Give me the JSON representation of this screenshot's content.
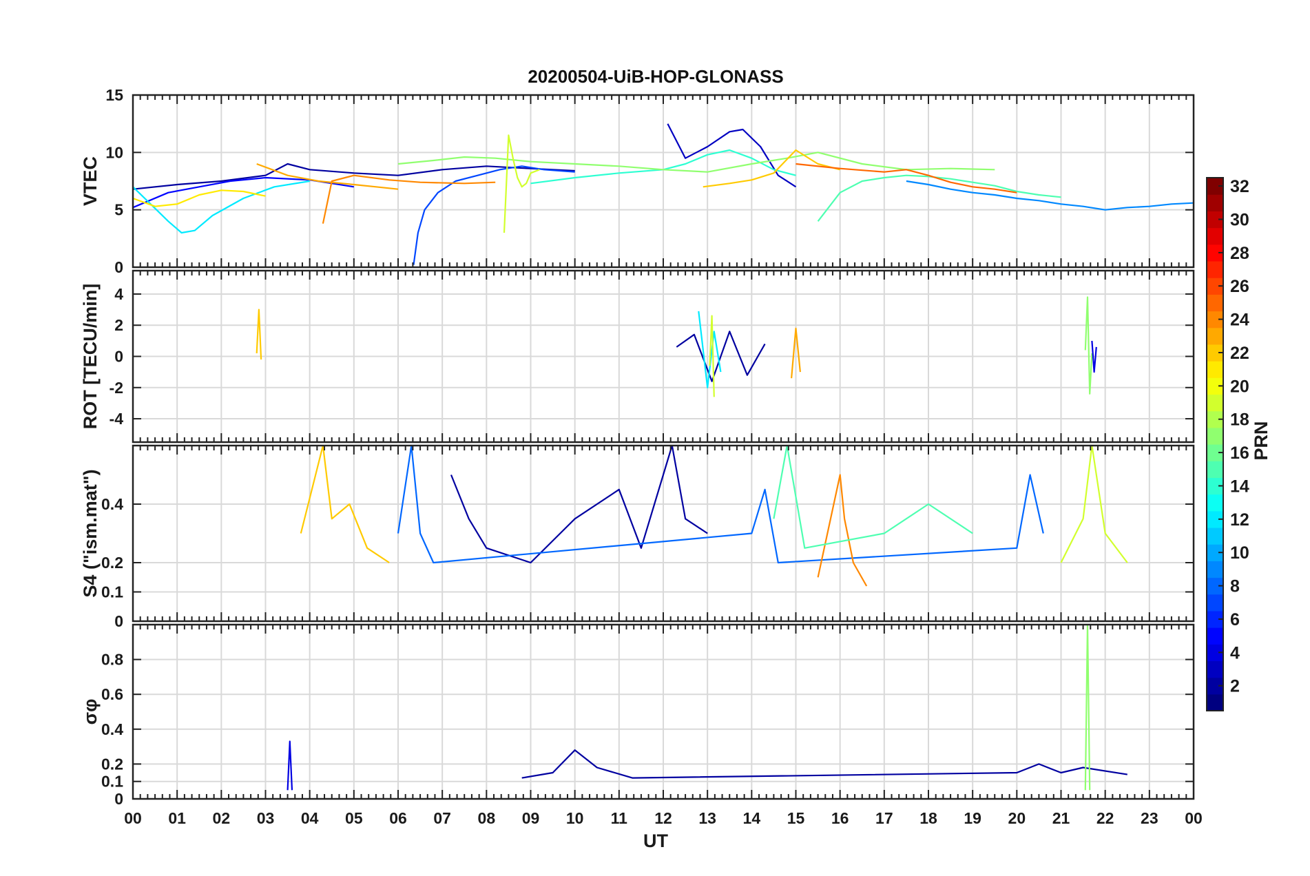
{
  "chart_data": {
    "type": "line",
    "title": "20200504-UiB-HOP-GLONASS",
    "xlabel": "UT",
    "x_ticks": [
      "00",
      "01",
      "02",
      "03",
      "04",
      "05",
      "06",
      "07",
      "08",
      "09",
      "10",
      "11",
      "12",
      "13",
      "14",
      "15",
      "16",
      "17",
      "18",
      "19",
      "20",
      "21",
      "22",
      "23",
      "00"
    ],
    "xlim_hours": [
      0,
      24
    ],
    "grid": true,
    "color_by": "PRN",
    "colorbar": {
      "label": "PRN",
      "range": [
        1,
        32
      ],
      "colormap": "jet",
      "ticks": [
        "2",
        "4",
        "6",
        "8",
        "10",
        "12",
        "14",
        "16",
        "18",
        "20",
        "22",
        "24",
        "26",
        "28",
        "30",
        "32"
      ]
    },
    "panels": [
      {
        "ylabel": "VTEC",
        "ylim": [
          0,
          15
        ],
        "yticks": [
          "0",
          "5",
          "10",
          "15"
        ],
        "series": [
          {
            "prn": 2,
            "x": [
              0,
              1,
              2,
              3,
              3.5,
              4,
              5,
              6,
              7,
              8,
              9,
              10
            ],
            "y": [
              6.8,
              7.2,
              7.5,
              8.0,
              9.0,
              8.5,
              8.2,
              8.0,
              8.5,
              8.8,
              8.6,
              8.4
            ]
          },
          {
            "prn": 3,
            "x": [
              12.1,
              12.5,
              13,
              13.5,
              13.8,
              14.2,
              14.6,
              15
            ],
            "y": [
              12.5,
              9.5,
              10.5,
              11.8,
              12.0,
              10.5,
              8.0,
              7.0
            ]
          },
          {
            "prn": 5,
            "x": [
              0,
              0.8,
              1.5,
              2.2,
              3,
              4,
              5
            ],
            "y": [
              5.2,
              6.5,
              7.0,
              7.5,
              7.8,
              7.6,
              7.0
            ]
          },
          {
            "prn": 7,
            "x": [
              6.35,
              6.45,
              6.6,
              6.9,
              7.3,
              7.8,
              8.3,
              8.8,
              9.3,
              10
            ],
            "y": [
              0.2,
              3.0,
              5.0,
              6.5,
              7.5,
              8.0,
              8.5,
              8.8,
              8.5,
              8.3
            ]
          },
          {
            "prn": 9,
            "x": [
              17.5,
              18,
              18.5,
              19,
              19.5,
              20,
              20.5,
              21,
              21.5,
              22,
              22.5,
              23,
              23.5,
              24
            ],
            "y": [
              7.5,
              7.2,
              6.8,
              6.5,
              6.3,
              6.0,
              5.8,
              5.5,
              5.3,
              5.0,
              5.2,
              5.3,
              5.5,
              5.6
            ]
          },
          {
            "prn": 12,
            "x": [
              0,
              0.4,
              0.8,
              1.1,
              1.4,
              1.8,
              2.5,
              3.2,
              4.0
            ],
            "y": [
              7.0,
              5.5,
              4.0,
              3.0,
              3.2,
              4.5,
              6.0,
              7.0,
              7.5
            ]
          },
          {
            "prn": 14,
            "x": [
              9,
              10,
              11,
              12,
              12.5,
              13,
              13.5,
              14,
              14.5,
              15
            ],
            "y": [
              7.3,
              7.8,
              8.2,
              8.5,
              9.0,
              9.8,
              10.2,
              9.5,
              8.5,
              8.0
            ]
          },
          {
            "prn": 15,
            "x": [
              15.5,
              16,
              16.5,
              17,
              17.5,
              18,
              18.5,
              19,
              19.5,
              20,
              20.5,
              21
            ],
            "y": [
              4.0,
              6.5,
              7.5,
              7.8,
              8.0,
              7.9,
              7.7,
              7.4,
              7.1,
              6.6,
              6.3,
              6.1
            ]
          },
          {
            "prn": 17,
            "x": [
              6,
              6.8,
              7.5,
              8.2,
              9,
              10,
              11,
              12,
              13,
              14,
              14.8,
              15.5,
              16.5,
              17.5,
              18.5,
              19.5
            ],
            "y": [
              9.0,
              9.3,
              9.6,
              9.5,
              9.2,
              9.0,
              8.8,
              8.5,
              8.3,
              9.0,
              9.5,
              10.0,
              9.0,
              8.5,
              8.6,
              8.5
            ]
          },
          {
            "prn": 19,
            "x": [
              8.4,
              8.5,
              8.6,
              8.7,
              8.8,
              8.9,
              9.0,
              9.2
            ],
            "y": [
              3.0,
              11.5,
              9.5,
              7.8,
              7.0,
              7.3,
              8.2,
              8.5
            ]
          },
          {
            "prn": 21,
            "x": [
              0,
              0.5,
              1,
              1.5,
              2,
              2.5,
              3
            ],
            "y": [
              6.0,
              5.3,
              5.5,
              6.3,
              6.7,
              6.6,
              6.2
            ]
          },
          {
            "prn": 23,
            "x": [
              2.8,
              3.5,
              4.2,
              5,
              5.5,
              6.0
            ],
            "y": [
              9.0,
              8.0,
              7.5,
              7.2,
              7.0,
              6.8
            ]
          },
          {
            "prn": 24,
            "x": [
              4.3,
              4.5,
              5,
              5.8,
              6.5,
              7.5,
              8.2
            ],
            "y": [
              3.8,
              7.5,
              8.0,
              7.6,
              7.4,
              7.3,
              7.4
            ]
          },
          {
            "prn": 22,
            "x": [
              12.9,
              13.5,
              14,
              14.5,
              15.0,
              15.5,
              16
            ],
            "y": [
              7.0,
              7.3,
              7.6,
              8.2,
              10.2,
              9.0,
              8.5
            ]
          },
          {
            "prn": 25,
            "x": [
              15,
              16,
              17,
              17.5,
              18,
              18.5,
              19,
              19.5,
              20
            ],
            "y": [
              9.0,
              8.6,
              8.3,
              8.5,
              8.0,
              7.4,
              7.0,
              6.8,
              6.5
            ]
          }
        ]
      },
      {
        "ylabel": "ROT [TECU/min]",
        "ylim": [
          -5.5,
          5.5
        ],
        "yticks": [
          "-4",
          "-2",
          "0",
          "2",
          "4"
        ],
        "series": [
          {
            "prn": 2,
            "x": [
              12.3,
              12.7,
              13.1,
              13.5,
              13.9,
              14.3
            ],
            "y": [
              0.6,
              1.4,
              -1.6,
              1.6,
              -1.2,
              0.8
            ]
          },
          {
            "prn": 12,
            "x": [
              12.8,
              13.0,
              13.15,
              13.3
            ],
            "y": [
              2.9,
              -2.0,
              1.6,
              -1.0
            ]
          },
          {
            "prn": 19,
            "x": [
              13.05,
              13.1,
              13.15
            ],
            "y": [
              -0.6,
              2.6,
              -2.6
            ]
          },
          {
            "prn": 22,
            "x": [
              2.8,
              2.85,
              2.9
            ],
            "y": [
              0.2,
              3.0,
              -0.2
            ]
          },
          {
            "prn": 17,
            "x": [
              21.55,
              21.6,
              21.65,
              21.7
            ],
            "y": [
              0.4,
              3.8,
              -2.4,
              0.2
            ]
          },
          {
            "prn": 23,
            "x": [
              14.9,
              15.0,
              15.1
            ],
            "y": [
              -1.4,
              1.8,
              -1.0
            ]
          },
          {
            "prn": 4,
            "x": [
              21.7,
              21.75,
              21.8
            ],
            "y": [
              1.0,
              -1.0,
              0.6
            ]
          }
        ]
      },
      {
        "ylabel": "S4 (\"ism.mat\")",
        "ylim": [
          0,
          0.6
        ],
        "yticks": [
          "0",
          "0.1",
          "0.2",
          "0.4"
        ],
        "series": [
          {
            "prn": 2,
            "x": [
              7.2,
              7.6,
              8.0,
              9.0,
              10.0,
              11.0,
              11.5,
              12.2,
              12.5,
              13.0
            ],
            "y": [
              0.5,
              0.35,
              0.25,
              0.2,
              0.35,
              0.45,
              0.25,
              0.6,
              0.35,
              0.3
            ]
          },
          {
            "prn": 8,
            "x": [
              6.0,
              6.3,
              6.5,
              6.8,
              14.0,
              14.3,
              14.6,
              20.0,
              20.3,
              20.6
            ],
            "y": [
              0.3,
              0.6,
              0.3,
              0.2,
              0.3,
              0.45,
              0.2,
              0.25,
              0.5,
              0.3
            ]
          },
          {
            "prn": 22,
            "x": [
              3.8,
              4.3,
              4.5,
              4.9,
              5.3,
              5.8
            ],
            "y": [
              0.3,
              0.6,
              0.35,
              0.4,
              0.25,
              0.2
            ]
          },
          {
            "prn": 24,
            "x": [
              15.5,
              16.0,
              16.1,
              16.3,
              16.6
            ],
            "y": [
              0.15,
              0.5,
              0.35,
              0.2,
              0.12
            ]
          },
          {
            "prn": 19,
            "x": [
              21.0,
              21.5,
              21.7,
              22.0,
              22.5
            ],
            "y": [
              0.2,
              0.35,
              0.6,
              0.3,
              0.2
            ]
          },
          {
            "prn": 15,
            "x": [
              14.5,
              14.8,
              15.2,
              17.0,
              18.0,
              19.0
            ],
            "y": [
              0.35,
              0.6,
              0.25,
              0.3,
              0.4,
              0.3
            ]
          }
        ]
      },
      {
        "ylabel": "σφ",
        "ylim": [
          0,
          1.0
        ],
        "yticks": [
          "0",
          "0.1",
          "0.2",
          "0.4",
          "0.6",
          "0.8"
        ],
        "series": [
          {
            "prn": 2,
            "x": [
              8.8,
              9.5,
              10.0,
              10.5,
              11.3,
              20.0,
              20.5,
              21.0,
              21.5,
              22.5
            ],
            "y": [
              0.12,
              0.15,
              0.28,
              0.18,
              0.12,
              0.15,
              0.2,
              0.15,
              0.18,
              0.14
            ]
          },
          {
            "prn": 17,
            "x": [
              21.55,
              21.6,
              21.65
            ],
            "y": [
              0.05,
              1.0,
              0.05
            ]
          },
          {
            "prn": 4,
            "x": [
              3.5,
              3.55,
              3.6
            ],
            "y": [
              0.05,
              0.33,
              0.05
            ]
          }
        ]
      }
    ]
  }
}
